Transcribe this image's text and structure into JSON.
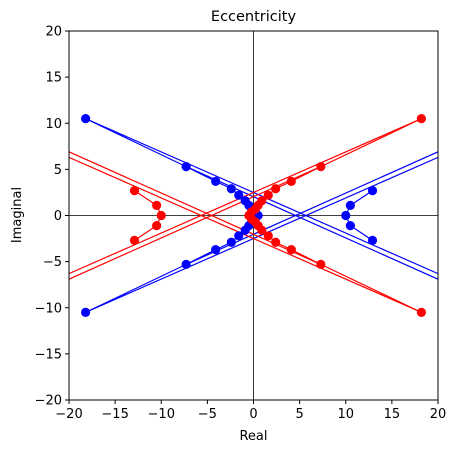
{
  "chart_data": {
    "type": "scatter",
    "title": "Eccentricity",
    "xlabel": "Real",
    "ylabel": "Imaginal",
    "xlim": [
      -20,
      20
    ],
    "ylim": [
      -20,
      20
    ],
    "xticks": [
      "−20",
      "−15",
      "−10",
      "−5",
      "0",
      "5",
      "10",
      "15",
      "20"
    ],
    "yticks": [
      "20",
      "15",
      "10",
      "5",
      "0",
      "−5",
      "−10",
      "−15",
      "−20"
    ],
    "xtick_values": [
      -20,
      -15,
      -10,
      -5,
      0,
      5,
      10,
      15,
      20
    ],
    "ytick_values": [
      20,
      15,
      10,
      5,
      0,
      -5,
      -10,
      -15,
      -20
    ],
    "reference_lines": [
      {
        "orientation": "horizontal",
        "value": 0
      },
      {
        "orientation": "vertical",
        "value": 0
      }
    ],
    "grid": false,
    "series": [
      {
        "color": "#0000ff",
        "points": [
          {
            "x": -18.2,
            "y": 10.5
          },
          {
            "x": -7.3,
            "y": 5.3
          },
          {
            "x": -4.1,
            "y": 3.7
          },
          {
            "x": -2.4,
            "y": 2.9
          },
          {
            "x": -1.6,
            "y": 2.2
          },
          {
            "x": -0.9,
            "y": 1.6
          },
          {
            "x": -0.5,
            "y": 1.1
          },
          {
            "x": -0.2,
            "y": 0.7
          },
          {
            "x": 0.2,
            "y": 0.4
          },
          {
            "x": 0.5,
            "y": 0.0
          },
          {
            "x": 0.2,
            "y": -0.4
          },
          {
            "x": -0.2,
            "y": -0.7
          },
          {
            "x": -0.5,
            "y": -1.1
          },
          {
            "x": -0.9,
            "y": -1.6
          },
          {
            "x": -1.6,
            "y": -2.2
          },
          {
            "x": -2.4,
            "y": -2.9
          },
          {
            "x": -4.1,
            "y": -3.7
          },
          {
            "x": -7.3,
            "y": -5.3
          },
          {
            "x": -18.2,
            "y": -10.5
          },
          {
            "x": 12.9,
            "y": 2.7
          },
          {
            "x": 10.5,
            "y": 1.1
          },
          {
            "x": 10.0,
            "y": 0.0
          },
          {
            "x": 10.5,
            "y": -1.1
          },
          {
            "x": 12.9,
            "y": -2.7
          }
        ],
        "lines": [
          [
            {
              "x": -18.2,
              "y": 10.5
            },
            {
              "x": 20.0,
              "y": -6.3
            }
          ],
          [
            {
              "x": -7.3,
              "y": 5.3
            },
            {
              "x": 20.0,
              "y": -6.9
            }
          ],
          [
            {
              "x": -18.2,
              "y": -10.5
            },
            {
              "x": 20.0,
              "y": 6.3
            }
          ],
          [
            {
              "x": -7.3,
              "y": -5.3
            },
            {
              "x": 20.0,
              "y": 6.9
            }
          ],
          [
            {
              "x": -18.2,
              "y": 10.5
            },
            {
              "x": -7.3,
              "y": 5.3
            },
            {
              "x": -4.1,
              "y": 3.7
            },
            {
              "x": -2.4,
              "y": 2.9
            },
            {
              "x": -1.6,
              "y": 2.2
            },
            {
              "x": -0.9,
              "y": 1.6
            },
            {
              "x": -0.5,
              "y": 1.1
            },
            {
              "x": -0.2,
              "y": 0.7
            },
            {
              "x": 0.2,
              "y": 0.4
            },
            {
              "x": 0.5,
              "y": 0.0
            },
            {
              "x": 0.2,
              "y": -0.4
            },
            {
              "x": -0.2,
              "y": -0.7
            },
            {
              "x": -0.5,
              "y": -1.1
            },
            {
              "x": -0.9,
              "y": -1.6
            },
            {
              "x": -1.6,
              "y": -2.2
            },
            {
              "x": -2.4,
              "y": -2.9
            },
            {
              "x": -4.1,
              "y": -3.7
            },
            {
              "x": -7.3,
              "y": -5.3
            },
            {
              "x": -18.2,
              "y": -10.5
            }
          ],
          [
            {
              "x": 12.9,
              "y": 2.7
            },
            {
              "x": 10.5,
              "y": 1.1
            },
            {
              "x": 10.0,
              "y": 0.0
            },
            {
              "x": 10.5,
              "y": -1.1
            },
            {
              "x": 12.9,
              "y": -2.7
            }
          ]
        ]
      },
      {
        "color": "#ff0000",
        "points": [
          {
            "x": 18.2,
            "y": 10.5
          },
          {
            "x": 7.3,
            "y": 5.3
          },
          {
            "x": 4.1,
            "y": 3.7
          },
          {
            "x": 2.4,
            "y": 2.9
          },
          {
            "x": 1.6,
            "y": 2.2
          },
          {
            "x": 0.9,
            "y": 1.6
          },
          {
            "x": 0.5,
            "y": 1.1
          },
          {
            "x": 0.2,
            "y": 0.7
          },
          {
            "x": -0.2,
            "y": 0.4
          },
          {
            "x": -0.5,
            "y": 0.0
          },
          {
            "x": -0.2,
            "y": -0.4
          },
          {
            "x": 0.2,
            "y": -0.7
          },
          {
            "x": 0.5,
            "y": -1.1
          },
          {
            "x": 0.9,
            "y": -1.6
          },
          {
            "x": 1.6,
            "y": -2.2
          },
          {
            "x": 2.4,
            "y": -2.9
          },
          {
            "x": 4.1,
            "y": -3.7
          },
          {
            "x": 7.3,
            "y": -5.3
          },
          {
            "x": 18.2,
            "y": -10.5
          },
          {
            "x": -12.9,
            "y": 2.7
          },
          {
            "x": -10.5,
            "y": 1.1
          },
          {
            "x": -10.0,
            "y": 0.0
          },
          {
            "x": -10.5,
            "y": -1.1
          },
          {
            "x": -12.9,
            "y": -2.7
          }
        ],
        "lines": [
          [
            {
              "x": 18.2,
              "y": 10.5
            },
            {
              "x": -20.0,
              "y": -6.3
            }
          ],
          [
            {
              "x": 7.3,
              "y": 5.3
            },
            {
              "x": -20.0,
              "y": -6.9
            }
          ],
          [
            {
              "x": 18.2,
              "y": -10.5
            },
            {
              "x": -20.0,
              "y": 6.3
            }
          ],
          [
            {
              "x": 7.3,
              "y": -5.3
            },
            {
              "x": -20.0,
              "y": 6.9
            }
          ],
          [
            {
              "x": 18.2,
              "y": 10.5
            },
            {
              "x": 7.3,
              "y": 5.3
            },
            {
              "x": 4.1,
              "y": 3.7
            },
            {
              "x": 2.4,
              "y": 2.9
            },
            {
              "x": 1.6,
              "y": 2.2
            },
            {
              "x": 0.9,
              "y": 1.6
            },
            {
              "x": 0.5,
              "y": 1.1
            },
            {
              "x": 0.2,
              "y": 0.7
            },
            {
              "x": -0.2,
              "y": 0.4
            },
            {
              "x": -0.5,
              "y": 0.0
            },
            {
              "x": -0.2,
              "y": -0.4
            },
            {
              "x": 0.2,
              "y": -0.7
            },
            {
              "x": 0.5,
              "y": -1.1
            },
            {
              "x": 0.9,
              "y": -1.6
            },
            {
              "x": 1.6,
              "y": -2.2
            },
            {
              "x": 2.4,
              "y": -2.9
            },
            {
              "x": 4.1,
              "y": -3.7
            },
            {
              "x": 7.3,
              "y": -5.3
            },
            {
              "x": 18.2,
              "y": -10.5
            }
          ],
          [
            {
              "x": -12.9,
              "y": 2.7
            },
            {
              "x": -10.5,
              "y": 1.1
            },
            {
              "x": -10.0,
              "y": 0.0
            },
            {
              "x": -10.5,
              "y": -1.1
            },
            {
              "x": -12.9,
              "y": -2.7
            }
          ]
        ]
      }
    ]
  }
}
